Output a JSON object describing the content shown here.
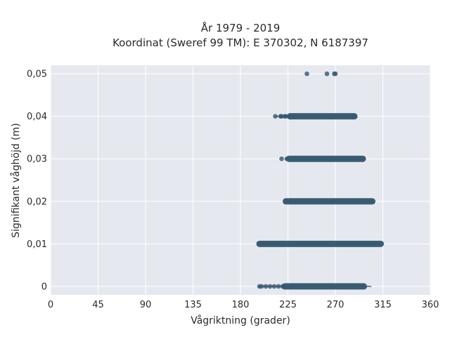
{
  "chart_data": {
    "type": "scatter",
    "title": [
      "År 1979 - 2019",
      "Koordinat (Sweref 99 TM): E 370302, N 6187397"
    ],
    "xlabel": "Vågriktning (grader)",
    "ylabel": "Signifikant våghöjd (m)",
    "xlim": [
      0,
      360
    ],
    "ylim": [
      -0.002,
      0.052
    ],
    "x_ticks": [
      0,
      45,
      90,
      135,
      180,
      225,
      270,
      315,
      360
    ],
    "x_tick_labels": [
      "0",
      "45",
      "90",
      "135",
      "180",
      "225",
      "270",
      "315",
      "360"
    ],
    "y_ticks": [
      0,
      0.01,
      0.02,
      0.03,
      0.04,
      0.05
    ],
    "y_tick_labels": [
      "0",
      "0,01",
      "0,02",
      "0,03",
      "0,04",
      "0,05"
    ],
    "grid": true,
    "background": "#e6e8f0",
    "point_color": "#34586f",
    "bands": [
      {
        "y": 0,
        "x_start": 197,
        "x_end": 304,
        "dense_start": 222,
        "dense_end": 297
      },
      {
        "y": 0.01,
        "x_start": 198,
        "x_end": 313,
        "dense_start": 198,
        "dense_end": 313
      },
      {
        "y": 0.02,
        "x_start": 223,
        "x_end": 305,
        "dense_start": 223,
        "dense_end": 305
      },
      {
        "y": 0.03,
        "x_start": 222,
        "x_end": 296,
        "dense_start": 226,
        "dense_end": 296
      },
      {
        "y": 0.04,
        "x_start": 213,
        "x_end": 288,
        "dense_start": 227,
        "dense_end": 288
      }
    ],
    "points": [
      {
        "x": 243,
        "y": 0.05
      },
      {
        "x": 262,
        "y": 0.05
      },
      {
        "x": 269,
        "y": 0.05
      },
      {
        "x": 270,
        "y": 0.05
      },
      {
        "x": 213,
        "y": 0.04
      },
      {
        "x": 218,
        "y": 0.04
      },
      {
        "x": 219,
        "y": 0.04
      },
      {
        "x": 222,
        "y": 0.04
      },
      {
        "x": 223,
        "y": 0.04
      },
      {
        "x": 219,
        "y": 0.03
      },
      {
        "x": 224,
        "y": 0.03
      },
      {
        "x": 198,
        "y": 0
      },
      {
        "x": 200,
        "y": 0
      },
      {
        "x": 204,
        "y": 0
      },
      {
        "x": 208,
        "y": 0
      },
      {
        "x": 212,
        "y": 0
      },
      {
        "x": 216,
        "y": 0
      },
      {
        "x": 220,
        "y": 0
      }
    ]
  }
}
